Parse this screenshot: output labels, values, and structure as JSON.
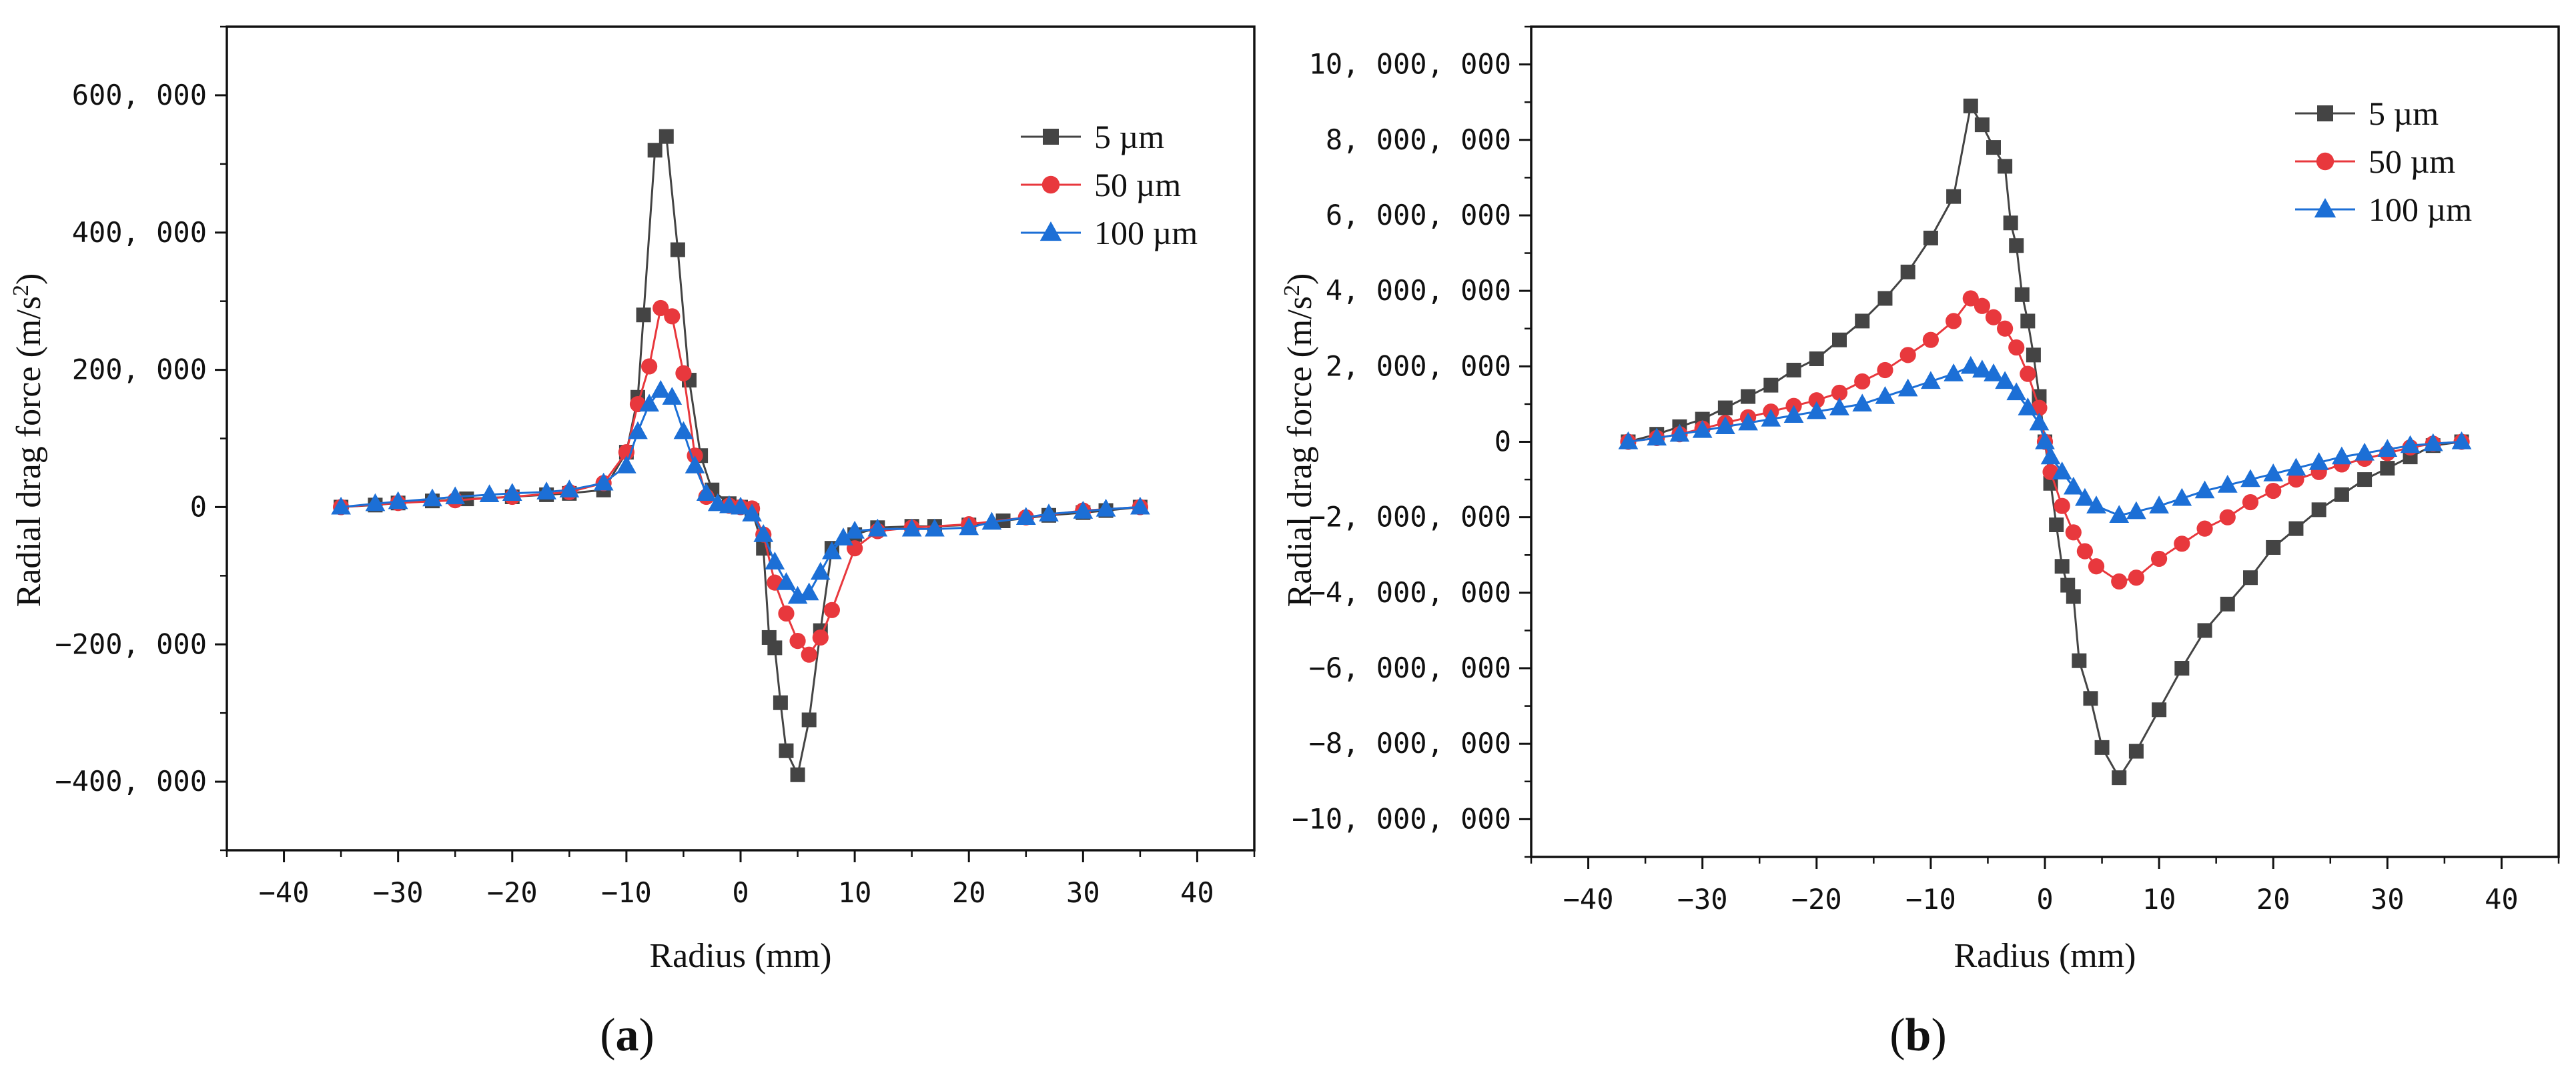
{
  "figure": {
    "panel_labels": [
      {
        "open": "(",
        "letter": "a",
        "close": ")"
      },
      {
        "open": "(",
        "letter": "b",
        "close": ")"
      }
    ]
  },
  "chart_data": [
    {
      "type": "line",
      "panel": "(a)",
      "title": "",
      "xlabel": "Radius (mm)",
      "ylabel": "Radial drag force (m/s",
      "ylabel_sup": "2",
      "ylabel_close": ")",
      "xlim": [
        -45,
        45
      ],
      "ylim": [
        -500000,
        700000
      ],
      "xticks": [
        -40,
        -30,
        -20,
        -10,
        0,
        10,
        20,
        30,
        40
      ],
      "xtick_labels": [
        "−40",
        "−30",
        "−20",
        "−10",
        "0",
        "10",
        "20",
        "30",
        "40"
      ],
      "yticks": [
        -400000,
        -200000,
        0,
        200000,
        400000,
        600000
      ],
      "ytick_labels": [
        "−400, 000",
        "−200, 000",
        "0",
        "200, 000",
        "400, 000",
        "600, 000"
      ],
      "grid": false,
      "legend_position": "top-right",
      "series": [
        {
          "name": "5 µm",
          "color": "#444444",
          "marker": "square",
          "x": [
            -35,
            -32,
            -30,
            -27,
            -24,
            -20,
            -17,
            -15,
            -12,
            -10,
            -9,
            -8.5,
            -7.5,
            -6.5,
            -5.5,
            -4.5,
            -3.5,
            -2.5,
            -1,
            0,
            1,
            2,
            2.5,
            3,
            3.5,
            4,
            5,
            6,
            7,
            8,
            10,
            12,
            15,
            17,
            20,
            23,
            27,
            30,
            32,
            35
          ],
          "y": [
            0,
            3000,
            6000,
            9000,
            12000,
            15000,
            18000,
            20000,
            25000,
            80000,
            160000,
            280000,
            520000,
            540000,
            375000,
            185000,
            75000,
            25000,
            5000,
            0,
            -5000,
            -60000,
            -190000,
            -205000,
            -285000,
            -355000,
            -390000,
            -310000,
            -180000,
            -60000,
            -40000,
            -30000,
            -28000,
            -28000,
            -26000,
            -20000,
            -12000,
            -8000,
            -5000,
            0
          ]
        },
        {
          "name": "50 µm",
          "color": "#e8383d",
          "marker": "circle",
          "x": [
            -35,
            -30,
            -25,
            -20,
            -15,
            -12,
            -10,
            -9,
            -8,
            -7,
            -6,
            -5,
            -4,
            -3,
            -1,
            0,
            1,
            2,
            3,
            4,
            5,
            6,
            7,
            8,
            10,
            12,
            15,
            20,
            25,
            30,
            35
          ],
          "y": [
            0,
            6000,
            10000,
            15000,
            22000,
            35000,
            80000,
            150000,
            205000,
            290000,
            278000,
            195000,
            75000,
            15000,
            2000,
            0,
            -2000,
            -40000,
            -110000,
            -155000,
            -195000,
            -215000,
            -190000,
            -150000,
            -60000,
            -35000,
            -30000,
            -25000,
            -15000,
            -5000,
            0
          ]
        },
        {
          "name": "100 µm",
          "color": "#1c6fd6",
          "marker": "triangle",
          "x": [
            -35,
            -32,
            -30,
            -27,
            -25,
            -22,
            -20,
            -17,
            -15,
            -12,
            -10,
            -9,
            -8,
            -7,
            -6,
            -5,
            -4,
            -3,
            -2,
            -1,
            0,
            1,
            2,
            3,
            4,
            5,
            6,
            7,
            8,
            9,
            10,
            12,
            15,
            17,
            20,
            22,
            25,
            27,
            30,
            32,
            35
          ],
          "y": [
            0,
            5000,
            8000,
            12000,
            15000,
            18000,
            20000,
            22000,
            25000,
            35000,
            60000,
            110000,
            150000,
            170000,
            160000,
            110000,
            60000,
            20000,
            5000,
            2000,
            0,
            -10000,
            -40000,
            -80000,
            -110000,
            -130000,
            -125000,
            -95000,
            -65000,
            -45000,
            -35000,
            -32000,
            -32000,
            -32000,
            -30000,
            -22000,
            -15000,
            -10000,
            -6000,
            -3000,
            0
          ]
        }
      ]
    },
    {
      "type": "line",
      "panel": "(b)",
      "title": "",
      "xlabel": "Radius (mm)",
      "ylabel": "Radial drag force (m/s",
      "ylabel_sup": "2",
      "ylabel_close": ")",
      "xlim": [
        -45,
        45
      ],
      "ylim": [
        -11000000,
        11000000
      ],
      "xticks": [
        -40,
        -30,
        -20,
        -10,
        0,
        10,
        20,
        30,
        40
      ],
      "xtick_labels": [
        "−40",
        "−30",
        "−20",
        "−10",
        "0",
        "10",
        "20",
        "30",
        "40"
      ],
      "yticks": [
        -10000000,
        -8000000,
        -6000000,
        -4000000,
        -2000000,
        0,
        2000000,
        4000000,
        6000000,
        8000000,
        10000000
      ],
      "ytick_labels": [
        "−10, 000, 000",
        "−8, 000, 000",
        "−6, 000, 000",
        "−4, 000, 000",
        "−2, 000, 000",
        "0",
        "2, 000, 000",
        "4, 000, 000",
        "6, 000, 000",
        "8, 000, 000",
        "10, 000, 000"
      ],
      "grid": false,
      "legend_position": "top-right",
      "series": [
        {
          "name": "5 µm",
          "color": "#444444",
          "marker": "square",
          "x": [
            -36.5,
            -34,
            -32,
            -30,
            -28,
            -26,
            -24,
            -22,
            -20,
            -18,
            -16,
            -14,
            -12,
            -10,
            -8,
            -6.5,
            -5.5,
            -4.5,
            -3.5,
            -3,
            -2.5,
            -2,
            -1.5,
            -1,
            -0.5,
            0,
            0.5,
            1,
            1.5,
            2,
            2.5,
            3,
            4,
            5,
            6.5,
            8,
            10,
            12,
            14,
            16,
            18,
            20,
            22,
            24,
            26,
            28,
            30,
            32,
            34,
            36.5
          ],
          "y": [
            0,
            200000,
            400000,
            600000,
            900000,
            1200000,
            1500000,
            1900000,
            2200000,
            2700000,
            3200000,
            3800000,
            4500000,
            5400000,
            6500000,
            8900000,
            8400000,
            7800000,
            7300000,
            5800000,
            5200000,
            3900000,
            3200000,
            2300000,
            1200000,
            0,
            -1100000,
            -2200000,
            -3300000,
            -3800000,
            -4100000,
            -5800000,
            -6800000,
            -8100000,
            -8900000,
            -8200000,
            -7100000,
            -6000000,
            -5000000,
            -4300000,
            -3600000,
            -2800000,
            -2300000,
            -1800000,
            -1400000,
            -1000000,
            -700000,
            -400000,
            -100000,
            0
          ]
        },
        {
          "name": "50 µm",
          "color": "#e8383d",
          "marker": "circle",
          "x": [
            -36.5,
            -34,
            -32,
            -30,
            -28,
            -26,
            -24,
            -22,
            -20,
            -18,
            -16,
            -14,
            -12,
            -10,
            -8,
            -6.5,
            -5.5,
            -4.5,
            -3.5,
            -2.5,
            -1.5,
            -0.5,
            0,
            0.5,
            1.5,
            2.5,
            3.5,
            4.5,
            6.5,
            8,
            10,
            12,
            14,
            16,
            18,
            20,
            22,
            24,
            26,
            28,
            30,
            32,
            34,
            36.5
          ],
          "y": [
            0,
            100000,
            200000,
            350000,
            500000,
            650000,
            800000,
            950000,
            1100000,
            1300000,
            1600000,
            1900000,
            2300000,
            2700000,
            3200000,
            3800000,
            3600000,
            3300000,
            3000000,
            2500000,
            1800000,
            900000,
            0,
            -800000,
            -1700000,
            -2400000,
            -2900000,
            -3300000,
            -3700000,
            -3600000,
            -3100000,
            -2700000,
            -2300000,
            -2000000,
            -1600000,
            -1300000,
            -1000000,
            -800000,
            -600000,
            -450000,
            -300000,
            -150000,
            -50000,
            0
          ]
        },
        {
          "name": "100 µm",
          "color": "#1c6fd6",
          "marker": "triangle",
          "x": [
            -36.5,
            -34,
            -32,
            -30,
            -28,
            -26,
            -24,
            -22,
            -20,
            -18,
            -16,
            -14,
            -12,
            -10,
            -8,
            -6.5,
            -5.5,
            -4.5,
            -3.5,
            -2.5,
            -1.5,
            -0.5,
            0,
            0.5,
            1.5,
            2.5,
            3.5,
            4.5,
            6.5,
            8,
            10,
            12,
            14,
            16,
            18,
            20,
            22,
            24,
            26,
            28,
            30,
            32,
            34,
            36.5
          ],
          "y": [
            0,
            100000,
            200000,
            300000,
            400000,
            500000,
            600000,
            700000,
            800000,
            900000,
            1000000,
            1200000,
            1400000,
            1600000,
            1800000,
            2000000,
            1900000,
            1800000,
            1600000,
            1300000,
            900000,
            500000,
            0,
            -400000,
            -800000,
            -1200000,
            -1500000,
            -1700000,
            -1950000,
            -1850000,
            -1700000,
            -1500000,
            -1300000,
            -1150000,
            -1000000,
            -850000,
            -700000,
            -550000,
            -400000,
            -300000,
            -200000,
            -100000,
            -50000,
            0
          ]
        }
      ]
    }
  ]
}
